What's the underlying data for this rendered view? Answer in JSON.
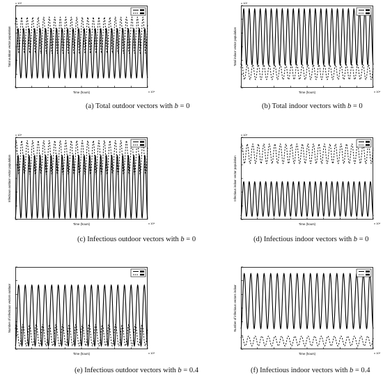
{
  "chart_data": [
    {
      "id": "a",
      "type": "line",
      "caption": "(a) Total outdoor vectors with b = 0",
      "caption_parts": {
        "prefix": "(a) Total outdoor vectors with ",
        "var": "b",
        "suffix": " = 0"
      },
      "xlabel": "Time (hours)",
      "ylabel": "Total outdoor vector population",
      "x_exponent": "x 10⁴",
      "y_exponent": "x 10⁴",
      "xlim": [
        0,
        1
      ],
      "ylim": [
        0,
        1
      ],
      "legend": "top-right",
      "series": [
        {
          "style": "solid",
          "cycles": 24,
          "min": 0.12,
          "max": 0.72
        },
        {
          "style": "dashed",
          "cycles": 24,
          "min": 0.42,
          "max": 0.86
        }
      ]
    },
    {
      "id": "b",
      "type": "line",
      "caption": "(b) Total indoor vectors with b = 0",
      "caption_parts": {
        "prefix": "(b) Total indoor vectors with ",
        "var": "b",
        "suffix": " = 0"
      },
      "xlabel": "Time (hours)",
      "ylabel": "Total indoor vector population",
      "x_exponent": "x 10⁴",
      "y_exponent": "x 10⁴",
      "xlim": [
        0,
        1
      ],
      "ylim": [
        0,
        1
      ],
      "legend": "top-right",
      "series": [
        {
          "style": "solid",
          "cycles": 24,
          "min": 0.28,
          "max": 0.96
        },
        {
          "style": "dashed",
          "cycles": 24,
          "min": 0.1,
          "max": 0.28
        }
      ]
    },
    {
      "id": "c",
      "type": "line",
      "caption": "(c) Infectious outdoor vectors with b = 0",
      "caption_parts": {
        "prefix": "(c) Infectious outdoor vectors with ",
        "var": "b",
        "suffix": " = 0"
      },
      "xlabel": "Time (hours)",
      "ylabel": "Infectious outdoor vector population",
      "x_exponent": "x 10⁴",
      "y_exponent": "x 10⁴",
      "xlim": [
        0,
        1
      ],
      "ylim": [
        0,
        1
      ],
      "legend": "top-right",
      "series": [
        {
          "style": "solid",
          "cycles": 24,
          "min": 0.02,
          "max": 0.78
        },
        {
          "style": "dashed",
          "cycles": 24,
          "min": 0.55,
          "max": 0.96
        }
      ]
    },
    {
      "id": "d",
      "type": "line",
      "caption": "(d) Infectious indoor vectors with b = 0",
      "caption_parts": {
        "prefix": "(d) Infectious indoor vectors with ",
        "var": "b",
        "suffix": " = 0"
      },
      "xlabel": "Time (hours)",
      "ylabel": "Infectious indoor vector population",
      "x_exponent": "x 10⁴",
      "y_exponent": "x 10⁴",
      "xlim": [
        0,
        1
      ],
      "ylim": [
        0,
        1
      ],
      "legend": "top-right",
      "series": [
        {
          "style": "solid",
          "cycles": 24,
          "min": 0.04,
          "max": 0.46
        },
        {
          "style": "dashed",
          "cycles": 24,
          "min": 0.68,
          "max": 0.92
        }
      ]
    },
    {
      "id": "e",
      "type": "line",
      "caption": "(e) Infectious outdoor vectors with b = 0.4",
      "caption_parts": {
        "prefix": "(e) Infectious outdoor vectors with ",
        "var": "b",
        "suffix": " = 0.4"
      },
      "xlabel": "Time (hours)",
      "ylabel": "Number of infectious vectors outdoor",
      "x_exponent": "x 10⁴",
      "y_exponent": "",
      "xlim": [
        0,
        1
      ],
      "ylim": [
        0,
        1
      ],
      "legend": "top-right",
      "series": [
        {
          "style": "solid",
          "cycles": 20,
          "min": 0.04,
          "max": 0.78
        },
        {
          "style": "dashed",
          "cycles": 20,
          "min": 0.04,
          "max": 0.3
        }
      ]
    },
    {
      "id": "f",
      "type": "line",
      "caption": "(f) Infectious indoor vectors with b = 0.4",
      "caption_parts": {
        "prefix": "(f) Infectious indoor vectors with ",
        "var": "b",
        "suffix": " = 0.4"
      },
      "xlabel": "Time (hours)",
      "ylabel": "Number of infectious vectors indoor",
      "x_exponent": "x 10⁴",
      "y_exponent": "",
      "xlim": [
        0,
        1
      ],
      "ylim": [
        0,
        1
      ],
      "legend": "top-right",
      "series": [
        {
          "style": "solid",
          "cycles": 20,
          "min": 0.25,
          "max": 0.92
        },
        {
          "style": "dashed",
          "cycles": 20,
          "min": 0.04,
          "max": 0.16
        }
      ]
    }
  ]
}
